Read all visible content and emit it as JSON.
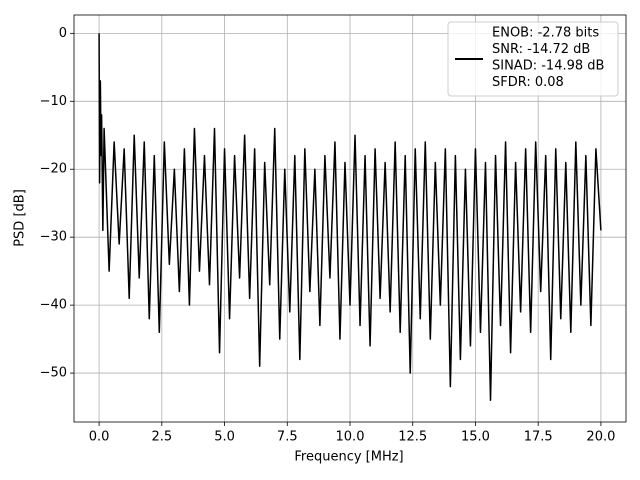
{
  "chart_data": {
    "type": "line",
    "x_label": "Frequency [MHz]",
    "y_label": "PSD [dB]",
    "xlim": [
      -1.0,
      21.0
    ],
    "ylim": [
      -57.2,
      2.7
    ],
    "xticks": [
      {
        "value": 0,
        "label": "0.0"
      },
      2.5,
      {
        "value": 5,
        "label": "5.0"
      },
      7.5,
      {
        "value": 10,
        "label": "10.0"
      },
      12.5,
      {
        "value": 15,
        "label": "15.0"
      },
      17.5,
      {
        "value": 20,
        "label": "20.0"
      }
    ],
    "yticks": [
      0,
      {
        "value": -10,
        "label": "−10"
      },
      {
        "value": -20,
        "label": "−20"
      },
      {
        "value": -30,
        "label": "−30"
      },
      {
        "value": -40,
        "label": "−40"
      },
      {
        "value": -50,
        "label": "−50"
      }
    ],
    "grid": true,
    "legend": "upper right",
    "x": [
      0,
      0.02,
      0.05,
      0.08,
      0.1,
      0.15,
      0.2,
      0.4,
      0.6,
      0.8,
      1.0,
      1.2,
      1.4,
      1.6,
      1.8,
      2.0,
      2.2,
      2.4,
      2.6,
      2.8,
      3.0,
      3.2,
      3.4,
      3.6,
      3.8,
      4.0,
      4.2,
      4.4,
      4.6,
      4.8,
      5.0,
      5.2,
      5.4,
      5.6,
      5.8,
      6.0,
      6.2,
      6.4,
      6.6,
      6.8,
      7.0,
      7.2,
      7.4,
      7.6,
      7.8,
      8.0,
      8.2,
      8.4,
      8.6,
      8.8,
      9.0,
      9.2,
      9.4,
      9.6,
      9.8,
      10.0,
      10.2,
      10.4,
      10.6,
      10.8,
      11.0,
      11.2,
      11.4,
      11.6,
      11.8,
      12.0,
      12.2,
      12.4,
      12.6,
      12.8,
      13.0,
      13.2,
      13.4,
      13.6,
      13.8,
      14.0,
      14.2,
      14.4,
      14.6,
      14.8,
      15.0,
      15.2,
      15.4,
      15.6,
      15.8,
      16.0,
      16.2,
      16.4,
      16.6,
      16.8,
      17.0,
      17.2,
      17.4,
      17.6,
      17.8,
      18.0,
      18.2,
      18.4,
      18.6,
      18.8,
      19.0,
      19.2,
      19.4,
      19.6,
      19.8,
      20.0
    ],
    "series": [
      {
        "name": [
          "ENOB: -2.78 bits",
          "SNR: -14.72 dB",
          "SINAD: -14.98 dB",
          "SFDR: 0.08"
        ],
        "color": "#000000",
        "values": [
          0,
          -22,
          -7,
          -18,
          -12,
          -29,
          -14,
          -35,
          -16,
          -31,
          -17,
          -39,
          -15,
          -36,
          -16,
          -42,
          -18,
          -44,
          -16,
          -34,
          -20,
          -38,
          -17,
          -40,
          -14,
          -35,
          -18,
          -37,
          -14,
          -47,
          -17,
          -42,
          -18,
          -36,
          -15,
          -39,
          -17,
          -49,
          -19,
          -37,
          -14,
          -45,
          -20,
          -41,
          -18,
          -48,
          -17,
          -38,
          -20,
          -43,
          -18,
          -36,
          -16,
          -45,
          -19,
          -40,
          -15,
          -43,
          -18,
          -46,
          -17,
          -39,
          -19,
          -41,
          -16,
          -44,
          -18,
          -50,
          -17,
          -42,
          -16,
          -45,
          -19,
          -40,
          -17,
          -52,
          -18,
          -48,
          -20,
          -46,
          -17,
          -44,
          -19,
          -54,
          -18,
          -43,
          -16,
          -47,
          -19,
          -41,
          -17,
          -44,
          -16,
          -38,
          -18,
          -48,
          -17,
          -42,
          -19,
          -44,
          -16,
          -40,
          -18,
          -43,
          -17,
          -29
        ]
      }
    ]
  }
}
